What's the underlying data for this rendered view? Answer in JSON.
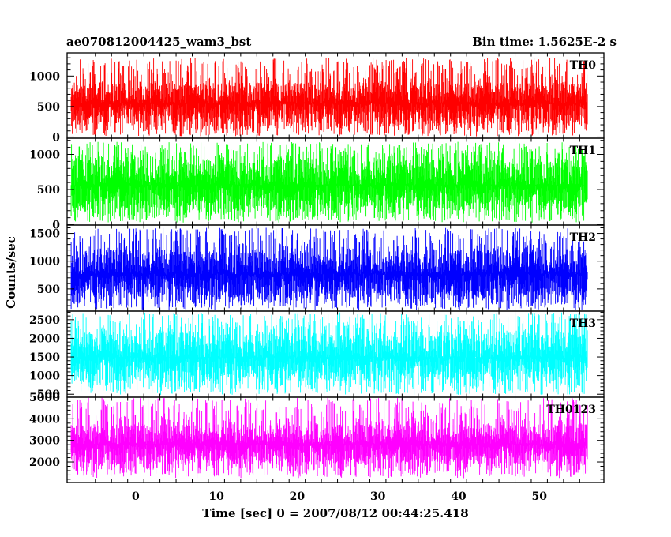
{
  "header": {
    "title": "ae070812004425_wam3_bst",
    "bin_time": "Bin time: 1.5625E-2 s"
  },
  "chart_data": {
    "type": "line",
    "xlabel": "Time [sec] 0 = 2007/08/12 00:44:25.418",
    "ylabel": "Counts/sec",
    "xlim": [
      -8.5,
      58
    ],
    "x_ticks": [
      0,
      10,
      20,
      30,
      40,
      50
    ],
    "x_tick_labels": [
      "0",
      "10",
      "20",
      "30",
      "40",
      "50"
    ],
    "x_data_range": [
      -8,
      56
    ],
    "grid": false,
    "panels": [
      {
        "label": "TH0",
        "color": "#ff0000",
        "ylim": [
          -20,
          1380
        ],
        "y_ticks": [
          0,
          500,
          1000
        ],
        "y_tick_labels": [
          "0",
          "500",
          "1000"
        ],
        "mean": 550,
        "typical_range": [
          200,
          900
        ],
        "extreme_range": [
          10,
          1300
        ]
      },
      {
        "label": "TH1",
        "color": "#00ff00",
        "ylim": [
          -5,
          1230
        ],
        "y_ticks": [
          0,
          500,
          1000
        ],
        "y_tick_labels": [
          "0",
          "500",
          "1000"
        ],
        "mean": 560,
        "typical_range": [
          200,
          930
        ],
        "extreme_range": [
          30,
          1180
        ]
      },
      {
        "label": "TH2",
        "color": "#0000ff",
        "ylim": [
          100,
          1650
        ],
        "y_ticks": [
          500,
          1000,
          1500
        ],
        "y_tick_labels": [
          "500",
          "1000",
          "1500"
        ],
        "mean": 760,
        "typical_range": [
          350,
          1200
        ],
        "extreme_range": [
          120,
          1600
        ]
      },
      {
        "label": "TH3",
        "color": "#00ffff",
        "ylim": [
          420,
          2730
        ],
        "y_ticks": [
          500,
          1000,
          1500,
          2000,
          2500
        ],
        "y_tick_labels": [
          "500",
          "1000",
          "1500",
          "2000",
          "2500"
        ],
        "mean": 1480,
        "typical_range": [
          850,
          2150
        ],
        "extreme_range": [
          480,
          2700
        ]
      },
      {
        "label": "TH0123",
        "color": "#ff00ff",
        "ylim": [
          1050,
          5000
        ],
        "y_ticks": [
          2000,
          3000,
          4000,
          5000
        ],
        "y_tick_labels": [
          "2000",
          "3000",
          "4000",
          "5000"
        ],
        "mean": 2820,
        "typical_range": [
          1900,
          3750
        ],
        "extreme_range": [
          1250,
          4980
        ]
      }
    ]
  }
}
